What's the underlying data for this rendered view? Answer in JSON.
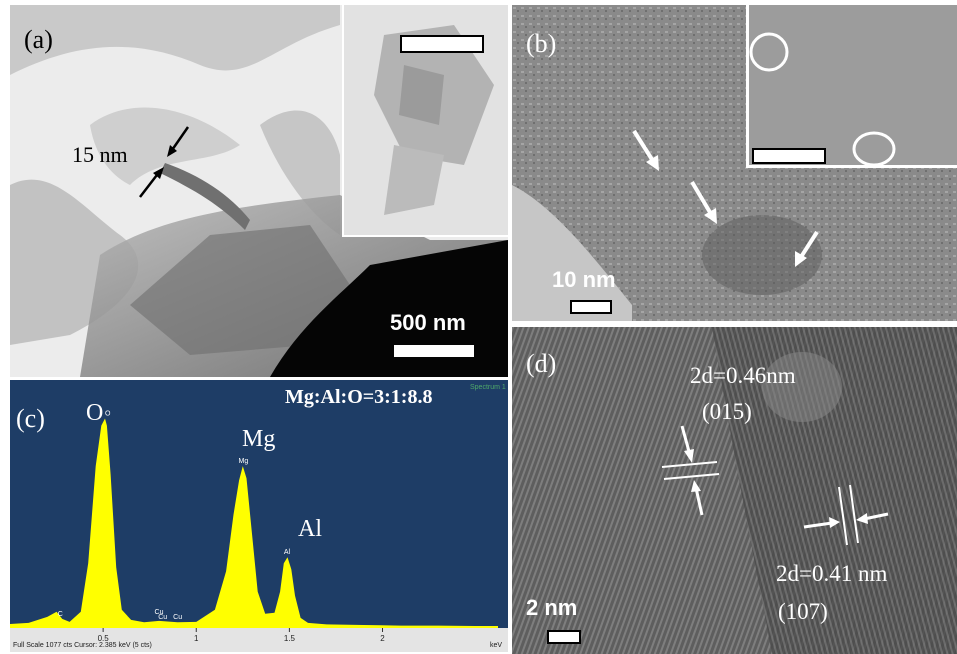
{
  "panels": {
    "a": {
      "label": "(a)",
      "thickness_label": "15 nm",
      "scale_label": "500 nm"
    },
    "b": {
      "label": "(b)",
      "scale_label": "10 nm"
    },
    "c": {
      "label": "(c)",
      "ratio_label": "Mg:Al:O=3:1:8.8",
      "spectrum_tag": "Spectrum 1",
      "status_text": "Full Scale 1077 cts  Cursor: 2.385 keV (5 cts)",
      "unit_label": "keV",
      "peak_labels": [
        {
          "name": "O",
          "small": "O"
        },
        {
          "name": "Mg",
          "small": "Mg"
        },
        {
          "name": "Al",
          "small": "Al"
        }
      ],
      "minor_labels": [
        "C",
        "Cu",
        "Cu",
        "Cu"
      ]
    },
    "d": {
      "label": "(d)",
      "spacing1": "2d=0.46nm",
      "plane1": "(015)",
      "spacing2": "2d=0.41 nm",
      "plane2": "(107)",
      "scale_label": "2 nm"
    }
  },
  "chart_data": {
    "type": "area",
    "title": "",
    "xlabel": "keV",
    "ylabel": "",
    "xlim": [
      0,
      2.62
    ],
    "ylim": [
      0,
      1077
    ],
    "x_ticks": [
      "0.5",
      "1",
      "1.5",
      "2"
    ],
    "series": [
      {
        "name": "Spectrum 1",
        "color": "#ffff00",
        "x": [
          0.0,
          0.1,
          0.2,
          0.25,
          0.28,
          0.32,
          0.38,
          0.42,
          0.46,
          0.49,
          0.51,
          0.52,
          0.54,
          0.57,
          0.6,
          0.65,
          0.72,
          0.8,
          0.9,
          1.0,
          1.1,
          1.16,
          1.2,
          1.23,
          1.25,
          1.27,
          1.3,
          1.33,
          1.37,
          1.42,
          1.45,
          1.47,
          1.49,
          1.51,
          1.53,
          1.56,
          1.6,
          1.7,
          1.9,
          2.1,
          2.3,
          2.5,
          2.62
        ],
        "values": [
          20,
          25,
          55,
          80,
          45,
          30,
          80,
          320,
          800,
          1000,
          1035,
          1000,
          760,
          300,
          90,
          40,
          28,
          35,
          28,
          30,
          90,
          280,
          560,
          730,
          800,
          740,
          460,
          180,
          70,
          75,
          180,
          320,
          350,
          290,
          160,
          50,
          25,
          18,
          15,
          12,
          12,
          10,
          10
        ]
      }
    ]
  },
  "colors": {
    "eds_background": "#1e3d66",
    "eds_peaks": "#ffff00",
    "panel_a_background": "#ededed"
  }
}
